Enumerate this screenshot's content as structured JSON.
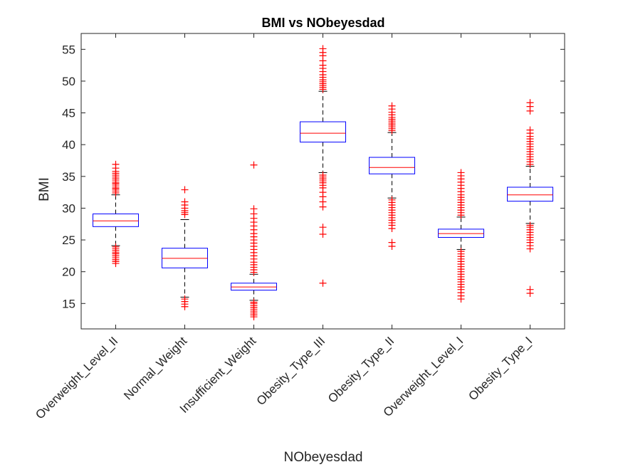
{
  "chart_data": {
    "type": "boxplot",
    "title": "BMI vs NObeyesdad",
    "xlabel": "NObeyesdad",
    "ylabel": "BMI",
    "ylim": [
      11,
      57.5
    ],
    "yticks": [
      15,
      20,
      25,
      30,
      35,
      40,
      45,
      50,
      55
    ],
    "grid": false,
    "legend": "none",
    "colors": {
      "box": "#0000ff",
      "median": "#ff0000",
      "whisker": "#000000",
      "outlier": "#ff0000"
    },
    "categories": [
      "Overweight_Level_II",
      "Normal_Weight",
      "Insufficient_Weight",
      "Obesity_Type_III",
      "Obesity_Type_II",
      "Overweight_Level_I",
      "Obesity_Type_I"
    ],
    "series": [
      {
        "category": "Overweight_Level_II",
        "q1": 27.1,
        "median": 28.0,
        "q3": 29.1,
        "whisker_low": 24.1,
        "whisker_high": 32.1,
        "outliers": [
          21.3,
          21.6,
          21.9,
          22.2,
          22.5,
          22.8,
          23.0,
          23.3,
          23.6,
          23.9,
          32.4,
          32.7,
          33.0,
          33.2,
          33.5,
          33.8,
          34.0,
          34.3,
          34.6,
          34.9,
          35.2,
          35.5,
          35.8,
          36.3,
          36.9
        ]
      },
      {
        "category": "Normal_Weight",
        "q1": 20.6,
        "median": 22.1,
        "q3": 23.7,
        "whisker_low": 16.0,
        "whisker_high": 28.2,
        "outliers": [
          14.5,
          14.9,
          15.3,
          15.7,
          29.0,
          29.3,
          29.6,
          30.0,
          30.5,
          31.0,
          32.9
        ]
      },
      {
        "category": "Insufficient_Weight",
        "q1": 17.1,
        "median": 17.6,
        "q3": 18.2,
        "whisker_low": 15.5,
        "whisker_high": 19.6,
        "outliers": [
          12.9,
          13.2,
          13.5,
          13.8,
          14.1,
          14.4,
          14.7,
          15.0,
          15.2,
          19.9,
          20.3,
          20.7,
          21.1,
          21.5,
          22.0,
          22.5,
          23.0,
          23.5,
          24.0,
          24.5,
          25.0,
          25.5,
          26.0,
          26.6,
          27.2,
          27.8,
          28.4,
          29.1,
          29.9,
          36.8
        ]
      },
      {
        "category": "Obesity_Type_III",
        "q1": 40.4,
        "median": 41.8,
        "q3": 43.6,
        "whisker_low": 35.6,
        "whisker_high": 48.4,
        "outliers": [
          18.2,
          25.9,
          27.0,
          30.2,
          31.0,
          31.8,
          32.5,
          33.2,
          33.6,
          34.0,
          34.3,
          34.6,
          34.9,
          35.2,
          48.7,
          49.0,
          49.3,
          49.6,
          49.9,
          50.2,
          50.6,
          51.0,
          51.5,
          52.0,
          52.5,
          53.2,
          54.0,
          54.5,
          55.1
        ]
      },
      {
        "category": "Obesity_Type_II",
        "q1": 35.4,
        "median": 36.4,
        "q3": 38.0,
        "whisker_low": 31.6,
        "whisker_high": 41.9,
        "outliers": [
          24.0,
          24.6,
          26.8,
          27.3,
          27.7,
          28.1,
          28.5,
          28.9,
          29.3,
          29.7,
          30.1,
          30.5,
          30.9,
          31.3,
          42.2,
          42.5,
          42.8,
          43.1,
          43.4,
          43.7,
          44.0,
          44.3,
          44.7,
          45.1,
          45.6,
          46.1
        ]
      },
      {
        "category": "Overweight_Level_I",
        "q1": 25.4,
        "median": 26.0,
        "q3": 26.7,
        "whisker_low": 23.5,
        "whisker_high": 28.6,
        "outliers": [
          15.7,
          16.2,
          16.7,
          17.2,
          17.6,
          18.0,
          18.4,
          18.8,
          19.2,
          19.6,
          20.0,
          20.4,
          20.8,
          21.2,
          21.6,
          22.0,
          22.4,
          22.8,
          23.2,
          28.9,
          29.3,
          29.7,
          30.1,
          30.5,
          30.9,
          31.3,
          31.7,
          32.1,
          32.6,
          33.1,
          33.6,
          34.1,
          34.6,
          35.1,
          35.6
        ]
      },
      {
        "category": "Obesity_Type_I",
        "q1": 31.1,
        "median": 32.1,
        "q3": 33.3,
        "whisker_low": 27.6,
        "whisker_high": 36.6,
        "outliers": [
          16.6,
          17.2,
          23.6,
          24.1,
          24.6,
          25.0,
          25.4,
          25.8,
          26.2,
          26.6,
          27.0,
          27.3,
          36.9,
          37.3,
          37.7,
          38.1,
          38.5,
          38.9,
          39.3,
          39.7,
          40.1,
          40.5,
          40.9,
          41.3,
          41.8,
          42.3,
          45.3,
          46.0,
          46.6
        ]
      }
    ]
  }
}
